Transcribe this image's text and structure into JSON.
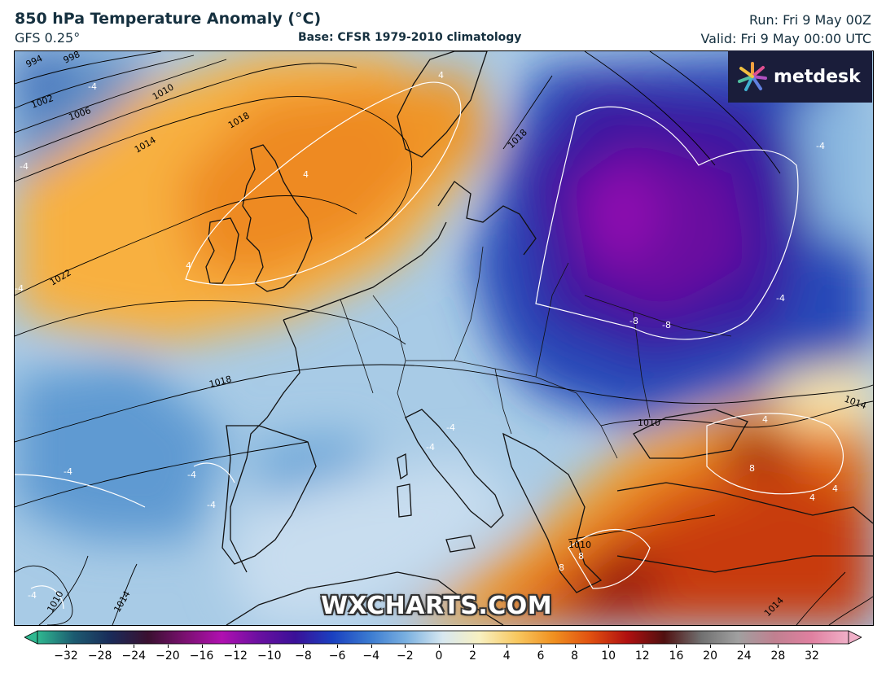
{
  "header": {
    "title": "850 hPa Temperature Anomaly (°C)",
    "model": "GFS 0.25°",
    "base": "Base: CFSR 1979-2010 climatology",
    "run": "Run: Fri 9 May 00Z",
    "valid": "Valid: Fri 9 May 00:00 UTC"
  },
  "logo": {
    "text": "metdesk",
    "icon": "metdesk-flower-icon"
  },
  "watermark": "WXCHARTS.COM",
  "isobars": [
    "994",
    "998",
    "1002",
    "1006",
    "1010",
    "1014",
    "1018",
    "1022",
    "1018",
    "1010",
    "1014",
    "1010",
    "1014",
    "1014",
    "1018",
    "1010"
  ],
  "anomaly_labels": [
    "-4",
    "-4",
    "-4",
    "-4",
    "4",
    "4",
    "4",
    "-8",
    "-8",
    "-4",
    "-4",
    "-4",
    "-4",
    "-4",
    "4",
    "8",
    "8",
    "8",
    "4",
    "4",
    "-4",
    "-4"
  ],
  "colorbar": {
    "ticks": [
      "−32",
      "−28",
      "−24",
      "−20",
      "−16",
      "−12",
      "−10",
      "−8",
      "−6",
      "−4",
      "−2",
      "0",
      "2",
      "4",
      "6",
      "8",
      "10",
      "12",
      "16",
      "20",
      "24",
      "28",
      "32"
    ],
    "colors": [
      "#2fb890",
      "#1c5a70",
      "#1a2a58",
      "#3a1030",
      "#7a1070",
      "#b010b0",
      "#6a10a0",
      "#3a1098",
      "#1a40c0",
      "#3a7ad0",
      "#7ab0e0",
      "#d8e8f0",
      "#f8f0c0",
      "#f8c860",
      "#f09020",
      "#e05010",
      "#b01010",
      "#501010",
      "#707070",
      "#a0a0a0",
      "#c08090",
      "#e080a0",
      "#f0b0c8"
    ]
  }
}
